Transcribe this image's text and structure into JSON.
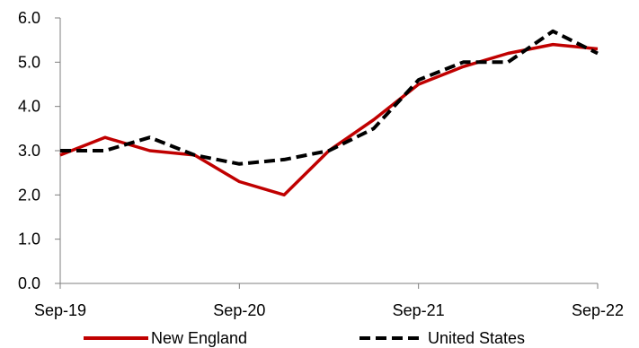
{
  "chart_data": {
    "type": "line",
    "title": "",
    "xlabel": "",
    "ylabel": "",
    "ylim": [
      0,
      6
    ],
    "yticks": [
      "0.0",
      "1.0",
      "2.0",
      "3.0",
      "4.0",
      "5.0",
      "6.0"
    ],
    "xticks": [
      "Sep-19",
      "Sep-20",
      "Sep-21",
      "Sep-22"
    ],
    "x": [
      "Sep-19",
      "Dec-19",
      "Mar-20",
      "Jun-20",
      "Sep-20",
      "Dec-20",
      "Mar-21",
      "Jun-21",
      "Sep-21",
      "Dec-21",
      "Mar-22",
      "Jun-22",
      "Sep-22"
    ],
    "series": [
      {
        "name": "New England",
        "color": "#c00000",
        "dash": "solid",
        "values": [
          2.9,
          3.3,
          3.0,
          2.9,
          2.3,
          2.0,
          3.0,
          3.7,
          4.5,
          4.9,
          5.2,
          5.4,
          5.3
        ]
      },
      {
        "name": "United States",
        "color": "#000000",
        "dash": "dashed",
        "values": [
          3.0,
          3.0,
          3.3,
          2.9,
          2.7,
          2.8,
          3.0,
          3.5,
          4.6,
          5.0,
          5.0,
          5.7,
          5.2
        ]
      }
    ],
    "legend_position": "bottom",
    "grid": false
  }
}
